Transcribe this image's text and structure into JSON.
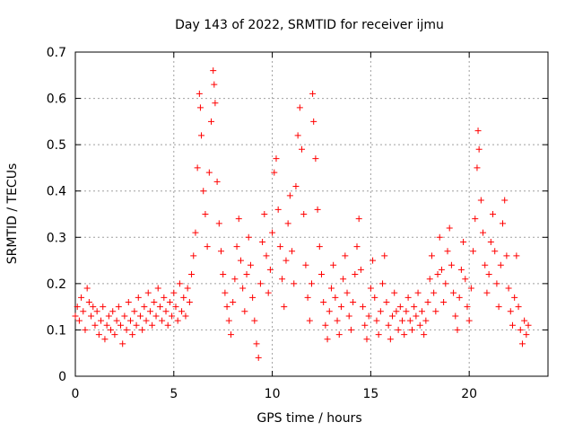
{
  "chart_data": {
    "type": "scatter",
    "title": "Day 143 of 2022, SRMTID for receiver ijmu",
    "xlabel": "GPS time / hours",
    "ylabel": "SRMTID / TECUs",
    "xlim": [
      0,
      24
    ],
    "ylim": [
      0,
      0.7
    ],
    "xticks": [
      0,
      5,
      10,
      15,
      20
    ],
    "yticks": [
      0,
      0.1,
      0.2,
      0.3,
      0.4,
      0.5,
      0.6,
      0.7
    ],
    "xtick_labels": [
      "0",
      "5",
      "10",
      "15",
      "20"
    ],
    "ytick_labels": [
      "0",
      "0.1",
      "0.2",
      "0.3",
      "0.4",
      "0.5",
      "0.6",
      "0.7"
    ],
    "grid": true,
    "marker": "+",
    "color": "#ff0000",
    "series": [
      {
        "name": "SRMTID",
        "points": [
          [
            0.0,
            0.13
          ],
          [
            0.1,
            0.15
          ],
          [
            0.2,
            0.12
          ],
          [
            0.3,
            0.17
          ],
          [
            0.4,
            0.14
          ],
          [
            0.5,
            0.1
          ],
          [
            0.6,
            0.19
          ],
          [
            0.7,
            0.16
          ],
          [
            0.8,
            0.13
          ],
          [
            0.9,
            0.15
          ],
          [
            1.0,
            0.11
          ],
          [
            1.1,
            0.14
          ],
          [
            1.2,
            0.09
          ],
          [
            1.3,
            0.12
          ],
          [
            1.4,
            0.15
          ],
          [
            1.5,
            0.08
          ],
          [
            1.6,
            0.11
          ],
          [
            1.7,
            0.13
          ],
          [
            1.8,
            0.1
          ],
          [
            1.9,
            0.14
          ],
          [
            2.0,
            0.09
          ],
          [
            2.1,
            0.12
          ],
          [
            2.2,
            0.15
          ],
          [
            2.3,
            0.11
          ],
          [
            2.4,
            0.07
          ],
          [
            2.5,
            0.13
          ],
          [
            2.6,
            0.1
          ],
          [
            2.7,
            0.16
          ],
          [
            2.8,
            0.12
          ],
          [
            2.9,
            0.09
          ],
          [
            3.0,
            0.14
          ],
          [
            3.1,
            0.11
          ],
          [
            3.2,
            0.17
          ],
          [
            3.3,
            0.13
          ],
          [
            3.4,
            0.1
          ],
          [
            3.5,
            0.15
          ],
          [
            3.6,
            0.12
          ],
          [
            3.7,
            0.18
          ],
          [
            3.8,
            0.14
          ],
          [
            3.9,
            0.11
          ],
          [
            4.0,
            0.16
          ],
          [
            4.1,
            0.13
          ],
          [
            4.2,
            0.19
          ],
          [
            4.3,
            0.15
          ],
          [
            4.4,
            0.12
          ],
          [
            4.5,
            0.17
          ],
          [
            4.6,
            0.14
          ],
          [
            4.7,
            0.11
          ],
          [
            4.8,
            0.16
          ],
          [
            4.9,
            0.13
          ],
          [
            5.0,
            0.18
          ],
          [
            5.1,
            0.15
          ],
          [
            5.2,
            0.12
          ],
          [
            5.3,
            0.2
          ],
          [
            5.4,
            0.14
          ],
          [
            5.5,
            0.17
          ],
          [
            5.6,
            0.13
          ],
          [
            5.7,
            0.19
          ],
          [
            5.8,
            0.16
          ],
          [
            5.9,
            0.22
          ],
          [
            6.0,
            0.26
          ],
          [
            6.1,
            0.31
          ],
          [
            6.2,
            0.45
          ],
          [
            6.3,
            0.61
          ],
          [
            6.35,
            0.58
          ],
          [
            6.4,
            0.52
          ],
          [
            6.5,
            0.4
          ],
          [
            6.6,
            0.35
          ],
          [
            6.7,
            0.28
          ],
          [
            6.8,
            0.44
          ],
          [
            6.9,
            0.55
          ],
          [
            7.0,
            0.66
          ],
          [
            7.05,
            0.63
          ],
          [
            7.1,
            0.59
          ],
          [
            7.2,
            0.42
          ],
          [
            7.3,
            0.33
          ],
          [
            7.4,
            0.27
          ],
          [
            7.5,
            0.22
          ],
          [
            7.6,
            0.18
          ],
          [
            7.7,
            0.15
          ],
          [
            7.8,
            0.12
          ],
          [
            7.9,
            0.09
          ],
          [
            8.0,
            0.16
          ],
          [
            8.1,
            0.21
          ],
          [
            8.2,
            0.28
          ],
          [
            8.3,
            0.34
          ],
          [
            8.4,
            0.25
          ],
          [
            8.5,
            0.19
          ],
          [
            8.6,
            0.14
          ],
          [
            8.7,
            0.22
          ],
          [
            8.8,
            0.3
          ],
          [
            8.9,
            0.24
          ],
          [
            9.0,
            0.17
          ],
          [
            9.1,
            0.12
          ],
          [
            9.2,
            0.07
          ],
          [
            9.3,
            0.04
          ],
          [
            9.4,
            0.2
          ],
          [
            9.5,
            0.29
          ],
          [
            9.6,
            0.35
          ],
          [
            9.7,
            0.26
          ],
          [
            9.8,
            0.18
          ],
          [
            9.9,
            0.23
          ],
          [
            10.0,
            0.31
          ],
          [
            10.1,
            0.44
          ],
          [
            10.2,
            0.47
          ],
          [
            10.3,
            0.36
          ],
          [
            10.4,
            0.28
          ],
          [
            10.5,
            0.21
          ],
          [
            10.6,
            0.15
          ],
          [
            10.7,
            0.25
          ],
          [
            10.8,
            0.33
          ],
          [
            10.9,
            0.39
          ],
          [
            11.0,
            0.27
          ],
          [
            11.1,
            0.2
          ],
          [
            11.2,
            0.41
          ],
          [
            11.3,
            0.52
          ],
          [
            11.4,
            0.58
          ],
          [
            11.5,
            0.49
          ],
          [
            11.6,
            0.35
          ],
          [
            11.7,
            0.24
          ],
          [
            11.8,
            0.17
          ],
          [
            11.9,
            0.12
          ],
          [
            12.0,
            0.2
          ],
          [
            12.05,
            0.61
          ],
          [
            12.1,
            0.55
          ],
          [
            12.2,
            0.47
          ],
          [
            12.3,
            0.36
          ],
          [
            12.4,
            0.28
          ],
          [
            12.5,
            0.22
          ],
          [
            12.6,
            0.16
          ],
          [
            12.7,
            0.11
          ],
          [
            12.8,
            0.08
          ],
          [
            12.9,
            0.14
          ],
          [
            13.0,
            0.19
          ],
          [
            13.1,
            0.24
          ],
          [
            13.2,
            0.17
          ],
          [
            13.3,
            0.12
          ],
          [
            13.4,
            0.09
          ],
          [
            13.5,
            0.15
          ],
          [
            13.6,
            0.21
          ],
          [
            13.7,
            0.26
          ],
          [
            13.8,
            0.18
          ],
          [
            13.9,
            0.13
          ],
          [
            14.0,
            0.1
          ],
          [
            14.1,
            0.16
          ],
          [
            14.2,
            0.22
          ],
          [
            14.3,
            0.28
          ],
          [
            14.4,
            0.34
          ],
          [
            14.5,
            0.23
          ],
          [
            14.6,
            0.15
          ],
          [
            14.7,
            0.11
          ],
          [
            14.8,
            0.08
          ],
          [
            14.9,
            0.13
          ],
          [
            15.0,
            0.19
          ],
          [
            15.1,
            0.25
          ],
          [
            15.2,
            0.17
          ],
          [
            15.3,
            0.12
          ],
          [
            15.4,
            0.09
          ],
          [
            15.5,
            0.14
          ],
          [
            15.6,
            0.2
          ],
          [
            15.7,
            0.26
          ],
          [
            15.8,
            0.16
          ],
          [
            15.9,
            0.11
          ],
          [
            16.0,
            0.08
          ],
          [
            16.1,
            0.13
          ],
          [
            16.2,
            0.18
          ],
          [
            16.3,
            0.14
          ],
          [
            16.4,
            0.1
          ],
          [
            16.5,
            0.15
          ],
          [
            16.6,
            0.12
          ],
          [
            16.7,
            0.09
          ],
          [
            16.8,
            0.14
          ],
          [
            16.9,
            0.17
          ],
          [
            17.0,
            0.12
          ],
          [
            17.1,
            0.1
          ],
          [
            17.2,
            0.15
          ],
          [
            17.3,
            0.13
          ],
          [
            17.4,
            0.18
          ],
          [
            17.5,
            0.11
          ],
          [
            17.6,
            0.14
          ],
          [
            17.7,
            0.09
          ],
          [
            17.8,
            0.12
          ],
          [
            17.9,
            0.16
          ],
          [
            18.0,
            0.21
          ],
          [
            18.1,
            0.26
          ],
          [
            18.2,
            0.18
          ],
          [
            18.3,
            0.14
          ],
          [
            18.4,
            0.22
          ],
          [
            18.5,
            0.3
          ],
          [
            18.6,
            0.23
          ],
          [
            18.7,
            0.16
          ],
          [
            18.8,
            0.2
          ],
          [
            18.9,
            0.27
          ],
          [
            19.0,
            0.32
          ],
          [
            19.1,
            0.24
          ],
          [
            19.2,
            0.18
          ],
          [
            19.3,
            0.13
          ],
          [
            19.4,
            0.1
          ],
          [
            19.5,
            0.17
          ],
          [
            19.6,
            0.23
          ],
          [
            19.7,
            0.29
          ],
          [
            19.8,
            0.21
          ],
          [
            19.9,
            0.15
          ],
          [
            20.0,
            0.12
          ],
          [
            20.1,
            0.19
          ],
          [
            20.2,
            0.27
          ],
          [
            20.3,
            0.34
          ],
          [
            20.4,
            0.45
          ],
          [
            20.45,
            0.53
          ],
          [
            20.5,
            0.49
          ],
          [
            20.6,
            0.38
          ],
          [
            20.7,
            0.31
          ],
          [
            20.8,
            0.24
          ],
          [
            20.9,
            0.18
          ],
          [
            21.0,
            0.22
          ],
          [
            21.1,
            0.29
          ],
          [
            21.2,
            0.35
          ],
          [
            21.3,
            0.27
          ],
          [
            21.4,
            0.2
          ],
          [
            21.5,
            0.15
          ],
          [
            21.6,
            0.24
          ],
          [
            21.7,
            0.33
          ],
          [
            21.8,
            0.38
          ],
          [
            21.9,
            0.26
          ],
          [
            22.0,
            0.19
          ],
          [
            22.1,
            0.14
          ],
          [
            22.2,
            0.11
          ],
          [
            22.3,
            0.17
          ],
          [
            22.4,
            0.26
          ],
          [
            22.5,
            0.15
          ],
          [
            22.6,
            0.1
          ],
          [
            22.7,
            0.07
          ],
          [
            22.8,
            0.12
          ],
          [
            22.9,
            0.09
          ],
          [
            23.0,
            0.11
          ]
        ]
      }
    ]
  }
}
